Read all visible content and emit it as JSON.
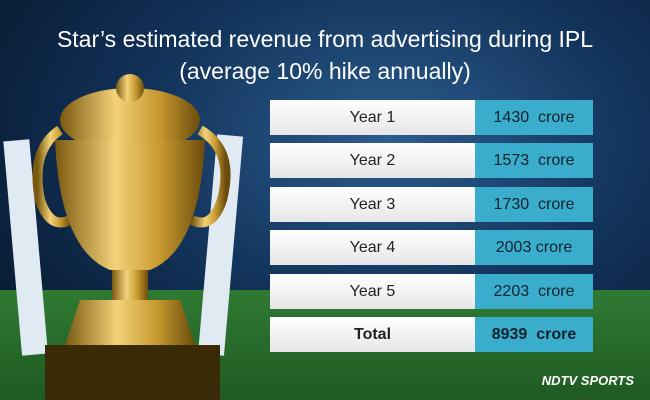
{
  "header": {
    "title_line1": "Star’s estimated revenue from advertising during IPL",
    "title_line2": "(average 10% hike annually)"
  },
  "table": {
    "rows": [
      [
        "Year 1",
        "1430  crore"
      ],
      [
        "Year 2",
        "1573  crore"
      ],
      [
        "Year 3",
        "1730  crore"
      ],
      [
        "Year 4",
        "2003 crore"
      ],
      [
        "Year 5",
        "2203  crore"
      ],
      [
        "Total",
        "8939  crore"
      ]
    ]
  },
  "footer": {
    "logo": "NDTV SPORTS"
  }
}
